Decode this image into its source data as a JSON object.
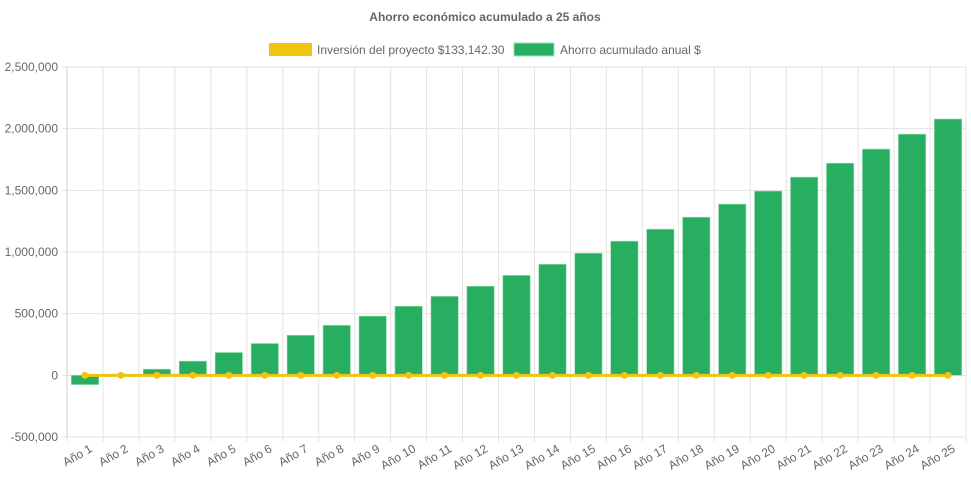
{
  "chart_data": {
    "type": "bar",
    "title": "Ahorro económico acumulado a 25 años",
    "categories": [
      "Año 1",
      "Año 2",
      "Año 3",
      "Año 4",
      "Año 5",
      "Año 6",
      "Año 7",
      "Año 8",
      "Año 9",
      "Año 10",
      "Año 11",
      "Año 12",
      "Año 13",
      "Año 14",
      "Año 15",
      "Año 16",
      "Año 17",
      "Año 18",
      "Año 19",
      "Año 20",
      "Año 21",
      "Año 22",
      "Año 23",
      "Año 24",
      "Año 25"
    ],
    "series": [
      {
        "name": "Inversión del proyecto $133,142.30",
        "type": "line",
        "color": "#f1c40f",
        "values": [
          0,
          0,
          0,
          0,
          0,
          0,
          0,
          0,
          0,
          0,
          0,
          0,
          0,
          0,
          0,
          0,
          0,
          0,
          0,
          0,
          0,
          0,
          0,
          0,
          0
        ]
      },
      {
        "name": "Ahorro acumulado anual $",
        "type": "bar",
        "color": "#27ae60",
        "values": [
          -75000,
          -5000,
          50000,
          115000,
          185000,
          258000,
          325000,
          405000,
          480000,
          560000,
          640000,
          722000,
          810000,
          900000,
          990000,
          1088000,
          1185000,
          1282000,
          1388000,
          1494000,
          1607000,
          1720000,
          1834000,
          1955000,
          2078000
        ]
      }
    ],
    "ylim": [
      -500000,
      2500000
    ],
    "yticks": [
      "-500,000",
      "0",
      "500,000",
      "1,000,000",
      "1,500,000",
      "2,000,000",
      "2,500,000"
    ],
    "ytick_values": [
      -500000,
      0,
      500000,
      1000000,
      1500000,
      2000000,
      2500000
    ],
    "grid": true,
    "legend": "top"
  }
}
